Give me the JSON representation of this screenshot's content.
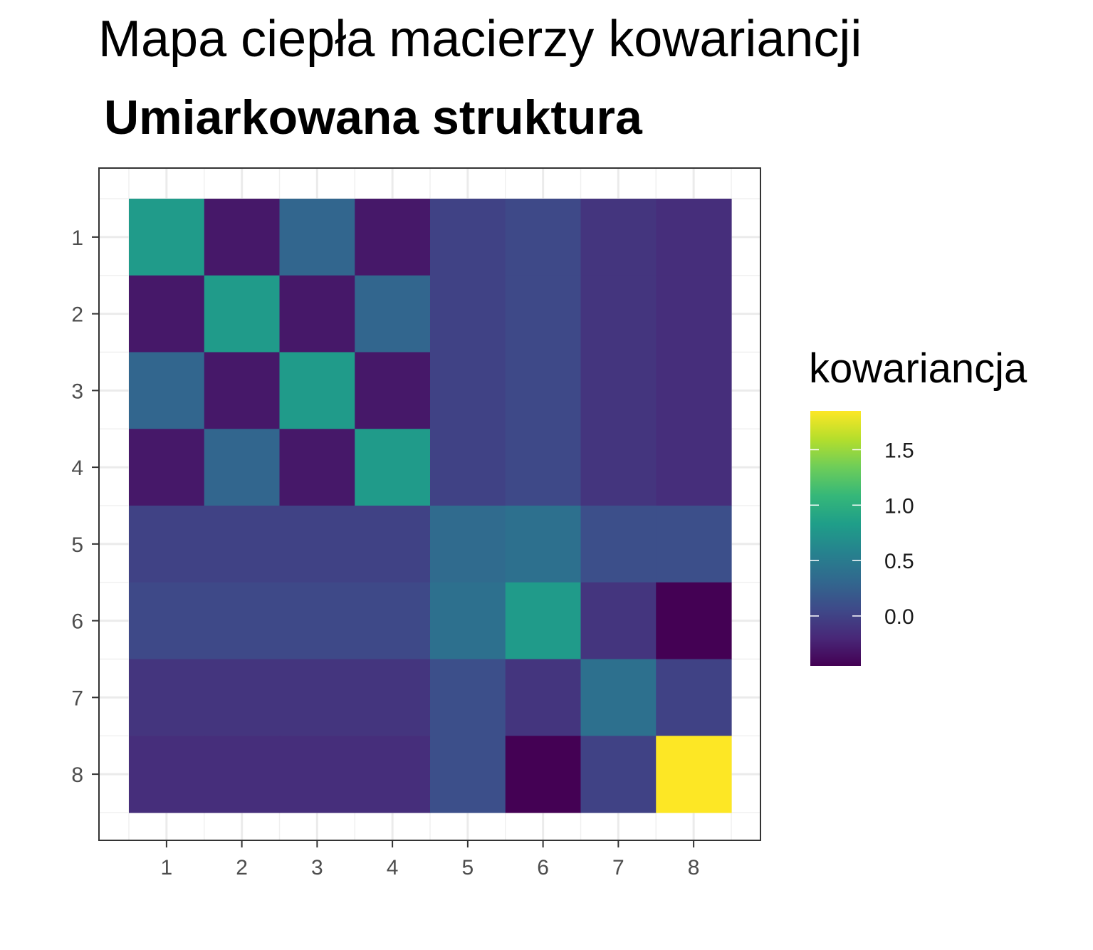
{
  "chart_data": {
    "type": "heatmap",
    "title": "Mapa ciepła macierzy kowariancji",
    "subtitle": "Umiarkowana struktura",
    "xlabel": "",
    "ylabel": "",
    "x_categories": [
      "1",
      "2",
      "3",
      "4",
      "5",
      "6",
      "7",
      "8"
    ],
    "y_categories": [
      "1",
      "2",
      "3",
      "4",
      "5",
      "6",
      "7",
      "8"
    ],
    "values": [
      [
        0.8,
        -0.3,
        0.3,
        -0.3,
        0.0,
        0.05,
        -0.1,
        -0.15
      ],
      [
        -0.3,
        0.8,
        -0.3,
        0.3,
        0.0,
        0.05,
        -0.1,
        -0.15
      ],
      [
        0.3,
        -0.3,
        0.8,
        -0.3,
        0.0,
        0.05,
        -0.1,
        -0.15
      ],
      [
        -0.3,
        0.3,
        -0.3,
        0.8,
        0.0,
        0.05,
        -0.1,
        -0.15
      ],
      [
        0.0,
        0.0,
        0.0,
        0.0,
        0.35,
        0.4,
        0.1,
        0.1
      ],
      [
        0.05,
        0.05,
        0.05,
        0.05,
        0.4,
        0.8,
        -0.1,
        -0.45
      ],
      [
        -0.1,
        -0.1,
        -0.1,
        -0.1,
        0.1,
        -0.1,
        0.4,
        0.0
      ],
      [
        -0.15,
        -0.15,
        -0.15,
        -0.15,
        0.1,
        -0.45,
        0.0,
        1.85
      ]
    ],
    "legend": {
      "title": "kowariancja",
      "position": "right",
      "ticks": [
        "1.5",
        "1.0",
        "0.5",
        "0.0"
      ],
      "tick_values": [
        1.5,
        1.0,
        0.5,
        0.0
      ],
      "range": [
        -0.45,
        1.85
      ],
      "colormap": "viridis"
    },
    "grid": true,
    "colormap_stops": [
      "#440154",
      "#482878",
      "#3E4A89",
      "#31688E",
      "#26828E",
      "#1F9E89",
      "#35B779",
      "#6DCD59",
      "#B4DE2C",
      "#FDE725"
    ]
  }
}
